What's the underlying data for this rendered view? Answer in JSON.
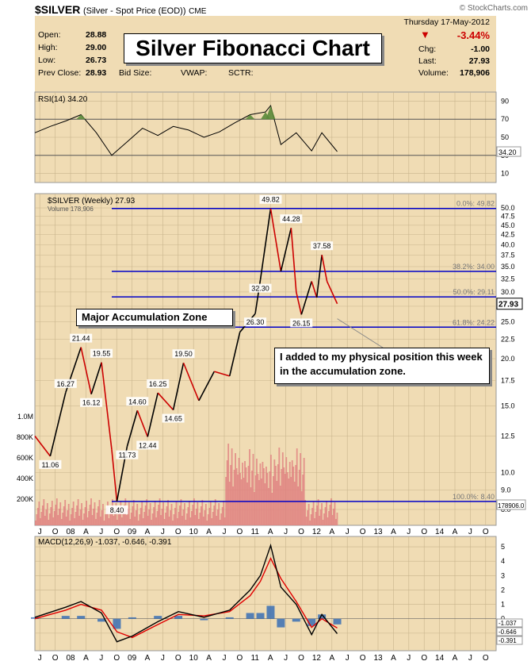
{
  "header": {
    "symbol": "$SILVER",
    "description": "(Silver - Spot Price (EOD))",
    "exchange": "CME",
    "copyright": "© StockCharts.com"
  },
  "quote": {
    "date": "Thursday  17-May-2012",
    "change_pct": "-3.44%",
    "open_label": "Open:",
    "open": "28.88",
    "high_label": "High:",
    "high": "29.00",
    "low_label": "Low:",
    "low": "26.73",
    "prev_close_label": "Prev Close:",
    "prev_close": "28.93",
    "bid_size_label": "Bid Size:",
    "vwap_label": "VWAP:",
    "sctr_label": "SCTR:",
    "chg_label": "Chg:",
    "chg": "-1.00",
    "last_label": "Last:",
    "last": "27.93",
    "volume_label": "Volume:",
    "volume": "178,906"
  },
  "title_box": "Silver Fibonacci Chart",
  "annotations": {
    "accumulation": "Major Accumulation Zone",
    "comment": "I added to my physical position this week in the accumulation zone."
  },
  "colors": {
    "panel_bg": "#f0dcb4",
    "price_up": "#000000",
    "price_down": "#cc0000",
    "fib_line": "#0000c8",
    "rsi_line": "#000000",
    "rsi_fill_over": "#5a8a3a",
    "macd_line": "#000000",
    "signal_line": "#e00000",
    "histogram": "#3a6eb4",
    "volume_bar": "#e08080"
  },
  "chart_data": [
    {
      "type": "line",
      "title": "RSI(14) 34.20",
      "indicator": "RSI",
      "period": 14,
      "last_value": "34.20",
      "ylim": [
        0,
        100
      ],
      "y_ticks": [
        "90",
        "70",
        "50",
        "30",
        "10"
      ],
      "overbought": 70,
      "oversold": 30,
      "x": [
        "2007-06",
        "2007-09",
        "2007-12",
        "2008-03",
        "2008-06",
        "2008-09",
        "2008-12",
        "2009-03",
        "2009-06",
        "2009-09",
        "2009-12",
        "2010-03",
        "2010-06",
        "2010-09",
        "2010-12",
        "2011-03",
        "2011-04",
        "2011-06",
        "2011-09",
        "2011-12",
        "2012-02",
        "2012-05"
      ],
      "values": [
        55,
        62,
        68,
        75,
        55,
        30,
        45,
        60,
        52,
        62,
        58,
        50,
        56,
        66,
        75,
        78,
        85,
        42,
        55,
        35,
        55,
        34.2
      ],
      "grid": true
    },
    {
      "type": "line",
      "title": "$SILVER (Weekly) 27.93",
      "series_label": "$SILVER (Weekly) 27.93",
      "volume_label": "Volume 178,906",
      "last_value": "27.93",
      "scale": "log",
      "ylim": [
        8,
        52
      ],
      "y_ticks": [
        "50.0",
        "47.5",
        "45.0",
        "42.5",
        "40.0",
        "37.5",
        "35.0",
        "32.5",
        "30.0",
        "27.5",
        "25.0",
        "22.5",
        "20.0",
        "17.5",
        "15.0",
        "12.5",
        "10.0",
        "9.0",
        "8.0"
      ],
      "x_labels": [
        "J",
        "O",
        "08",
        "A",
        "J",
        "O",
        "09",
        "A",
        "J",
        "O",
        "10",
        "A",
        "J",
        "O",
        "11",
        "A",
        "J",
        "O",
        "12",
        "A",
        "J",
        "O",
        "13",
        "A",
        "J",
        "O",
        "14",
        "A",
        "J",
        "O"
      ],
      "x": [
        "2007-06",
        "2007-09",
        "2007-12",
        "2008-03",
        "2008-05",
        "2008-07",
        "2008-09",
        "2008-10",
        "2008-12",
        "2009-02",
        "2009-04",
        "2009-06",
        "2009-09",
        "2009-11",
        "2010-02",
        "2010-05",
        "2010-08",
        "2010-10",
        "2011-01",
        "2011-02",
        "2011-04",
        "2011-06",
        "2011-08",
        "2011-09",
        "2011-10",
        "2011-12",
        "2012-01",
        "2012-02",
        "2012-03",
        "2012-05"
      ],
      "values": [
        12.5,
        11.06,
        16.27,
        21.44,
        16.12,
        19.55,
        11.5,
        8.4,
        11.73,
        14.6,
        12.44,
        16.25,
        14.65,
        19.5,
        15.5,
        18.5,
        18.0,
        23.5,
        26.3,
        32.3,
        49.82,
        34.0,
        44.28,
        30.0,
        26.15,
        32.0,
        29.0,
        37.58,
        32.0,
        27.93
      ],
      "point_labels": [
        {
          "x": "2007-09",
          "y": 11.06,
          "text": "11.06"
        },
        {
          "x": "2007-12",
          "y": 16.27,
          "text": "16.27"
        },
        {
          "x": "2008-03",
          "y": 21.44,
          "text": "21.44"
        },
        {
          "x": "2008-05",
          "y": 16.12,
          "text": "16.12"
        },
        {
          "x": "2008-07",
          "y": 19.55,
          "text": "19.55"
        },
        {
          "x": "2008-10",
          "y": 8.4,
          "text": "8.40"
        },
        {
          "x": "2008-12",
          "y": 11.73,
          "text": "11.73"
        },
        {
          "x": "2009-02",
          "y": 14.6,
          "text": "14.60"
        },
        {
          "x": "2009-04",
          "y": 12.44,
          "text": "12.44"
        },
        {
          "x": "2009-06",
          "y": 16.25,
          "text": "16.25"
        },
        {
          "x": "2009-09",
          "y": 14.65,
          "text": "14.65"
        },
        {
          "x": "2009-11",
          "y": 19.5,
          "text": "19.50"
        },
        {
          "x": "2011-01",
          "y": 26.3,
          "text": "26.30"
        },
        {
          "x": "2011-02",
          "y": 32.3,
          "text": "32.30"
        },
        {
          "x": "2011-04",
          "y": 49.82,
          "text": "49.82"
        },
        {
          "x": "2011-08",
          "y": 44.28,
          "text": "44.28"
        },
        {
          "x": "2011-10",
          "y": 26.15,
          "text": "26.15"
        },
        {
          "x": "2012-02",
          "y": 37.58,
          "text": "37.58"
        }
      ],
      "fib_levels": [
        {
          "label": "0.0%: 49.82",
          "value": 49.82,
          "x_start": "2008-09"
        },
        {
          "label": "38.2%: 34.00",
          "value": 34.0,
          "x_start": "2008-09"
        },
        {
          "label": "50.0%: 29.11",
          "value": 29.11,
          "x_start": "2008-09"
        },
        {
          "label": "61.8%: 24.22",
          "value": 24.22,
          "x_start": "2008-09"
        },
        {
          "label": "100.0%: 8.40",
          "value": 8.4,
          "x_start": "2008-09"
        }
      ],
      "volume": {
        "ticks": [
          "1.0M",
          "800K",
          "600K",
          "400K",
          "200K"
        ],
        "last": "178906.0"
      },
      "grid": true
    },
    {
      "type": "line",
      "title": "MACD(12,26,9) -1.037, -0.646, -0.391",
      "indicator": "MACD",
      "params": "12,26,9",
      "last_values": [
        "-1.037",
        "-0.646",
        "-0.391"
      ],
      "ylim": [
        -2,
        5.5
      ],
      "y_ticks": [
        "5",
        "4",
        "3",
        "2",
        "1",
        "0",
        "-1"
      ],
      "x": [
        "2007-06",
        "2007-12",
        "2008-03",
        "2008-07",
        "2008-10",
        "2009-01",
        "2009-06",
        "2009-10",
        "2010-03",
        "2010-08",
        "2010-12",
        "2011-02",
        "2011-04",
        "2011-06",
        "2011-09",
        "2011-12",
        "2012-02",
        "2012-05"
      ],
      "series": [
        {
          "name": "MACD",
          "values": [
            0.1,
            0.8,
            1.2,
            0.4,
            -1.6,
            -1.2,
            -0.2,
            0.5,
            0.1,
            0.6,
            2.0,
            3.0,
            5.1,
            2.2,
            1.0,
            -1.1,
            0.3,
            -1.037
          ]
        },
        {
          "name": "Signal",
          "values": [
            0.0,
            0.6,
            1.0,
            0.6,
            -0.9,
            -1.3,
            -0.4,
            0.3,
            0.2,
            0.5,
            1.6,
            2.6,
            4.2,
            2.8,
            1.2,
            -0.6,
            0.0,
            -0.646
          ]
        },
        {
          "name": "Histogram",
          "values": [
            0.1,
            0.2,
            0.2,
            -0.2,
            -0.7,
            0.1,
            0.2,
            0.2,
            -0.1,
            0.1,
            0.4,
            0.4,
            0.9,
            -0.6,
            -0.2,
            -0.5,
            0.3,
            -0.391
          ]
        }
      ],
      "grid": true
    }
  ]
}
